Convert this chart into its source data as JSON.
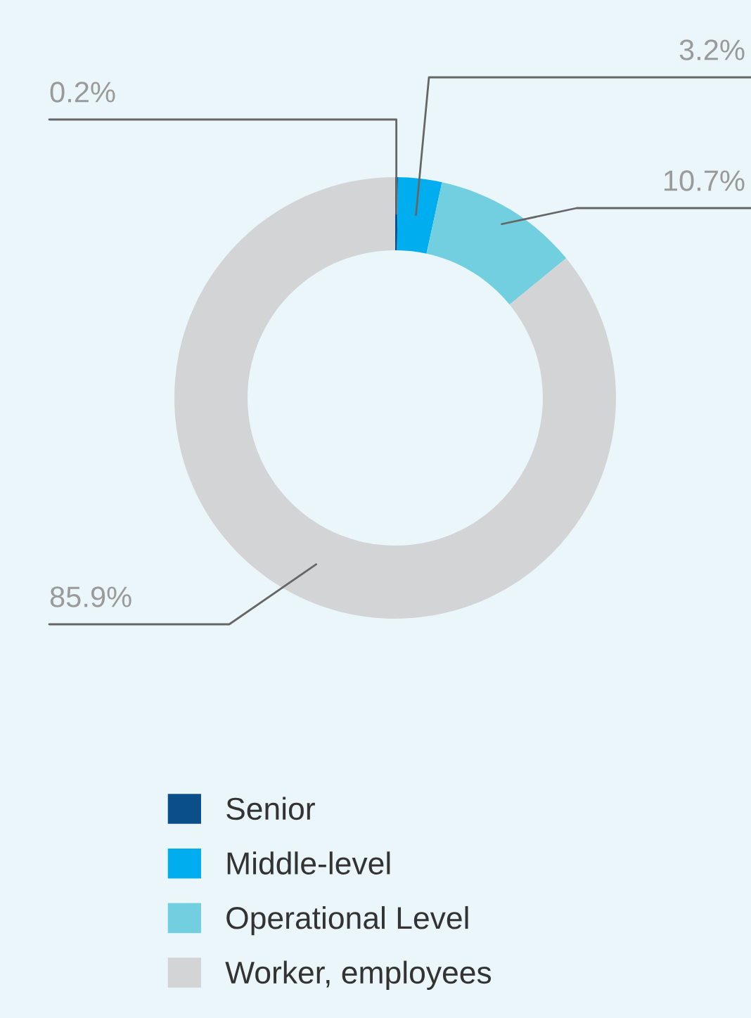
{
  "chart_data": {
    "type": "donut",
    "categories": [
      "Senior",
      "Middle-level",
      "Operational Level",
      "Worker, employees"
    ],
    "values": [
      0.2,
      3.2,
      10.7,
      85.9
    ],
    "colors": [
      "#0b4f8a",
      "#00aeef",
      "#72cfe0",
      "#d3d4d6"
    ],
    "value_labels": [
      "0.2%",
      "3.2%",
      "10.7%",
      "85.9%"
    ],
    "legend": "bottom"
  }
}
